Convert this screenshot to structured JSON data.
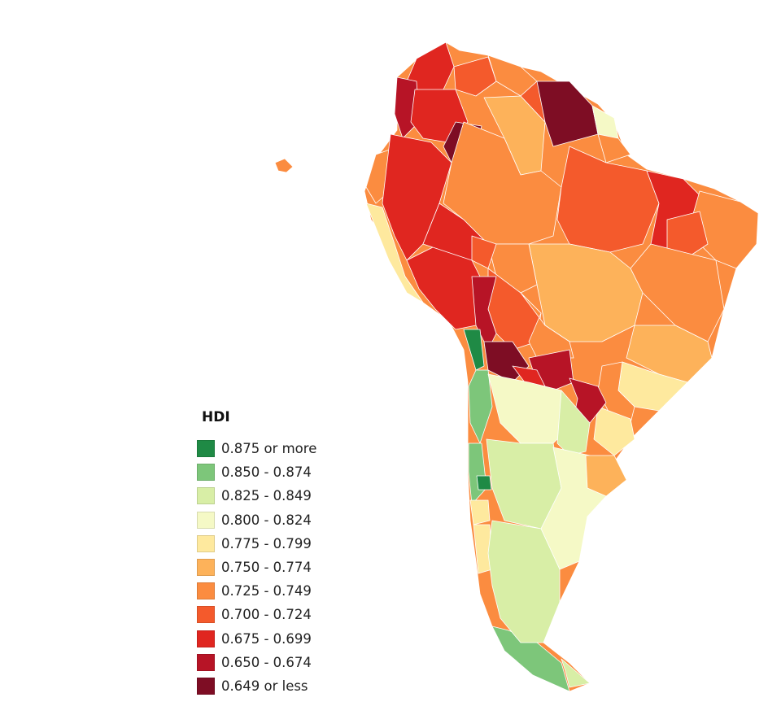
{
  "legend": {
    "title": "HDI",
    "items": [
      {
        "label": "0.875 or more",
        "color": "#1f8a45"
      },
      {
        "label": "0.850 - 0.874",
        "color": "#7dc67a"
      },
      {
        "label": "0.825 - 0.849",
        "color": "#d8eea6"
      },
      {
        "label": "0.800 - 0.824",
        "color": "#f5f9c6"
      },
      {
        "label": "0.775 - 0.799",
        "color": "#fee99e"
      },
      {
        "label": "0.750 - 0.774",
        "color": "#fdb25a"
      },
      {
        "label": "0.725 - 0.749",
        "color": "#fb8c40"
      },
      {
        "label": "0.700 - 0.724",
        "color": "#f45a2c"
      },
      {
        "label": "0.675 - 0.699",
        "color": "#e02620"
      },
      {
        "label": "0.650 - 0.674",
        "color": "#b71426"
      },
      {
        "label": "0.649 or less",
        "color": "#7e0d24"
      }
    ]
  }
}
